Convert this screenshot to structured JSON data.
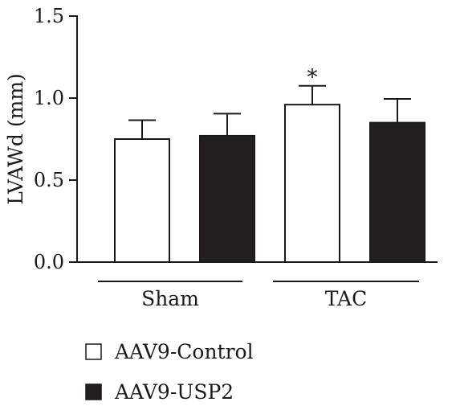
{
  "chart_data": {
    "type": "bar",
    "title": "",
    "ylabel": "LVAWd (mm)",
    "xlabel": "",
    "ylim": [
      0,
      1.5
    ],
    "yticks": [
      0.0,
      0.5,
      1.0,
      1.5
    ],
    "ytick_labels": [
      "0.0",
      "0.5",
      "1.0",
      "1.5"
    ],
    "categories": [
      "Sham",
      "TAC"
    ],
    "series": [
      {
        "name": "AAV9-Control",
        "values": [
          0.75,
          0.96
        ],
        "errors": [
          0.115,
          0.115
        ],
        "fill": "#ffffff",
        "stroke": "#1a1a1a"
      },
      {
        "name": "AAV9-USP2",
        "values": [
          0.77,
          0.85
        ],
        "errors": [
          0.135,
          0.145
        ],
        "fill": "#231f20",
        "stroke": "#1a1a1a"
      }
    ],
    "annotations": [
      {
        "text": "*",
        "category": "TAC",
        "series": "AAV9-Control"
      }
    ],
    "legend_position": "bottom-left",
    "grid": false
  }
}
